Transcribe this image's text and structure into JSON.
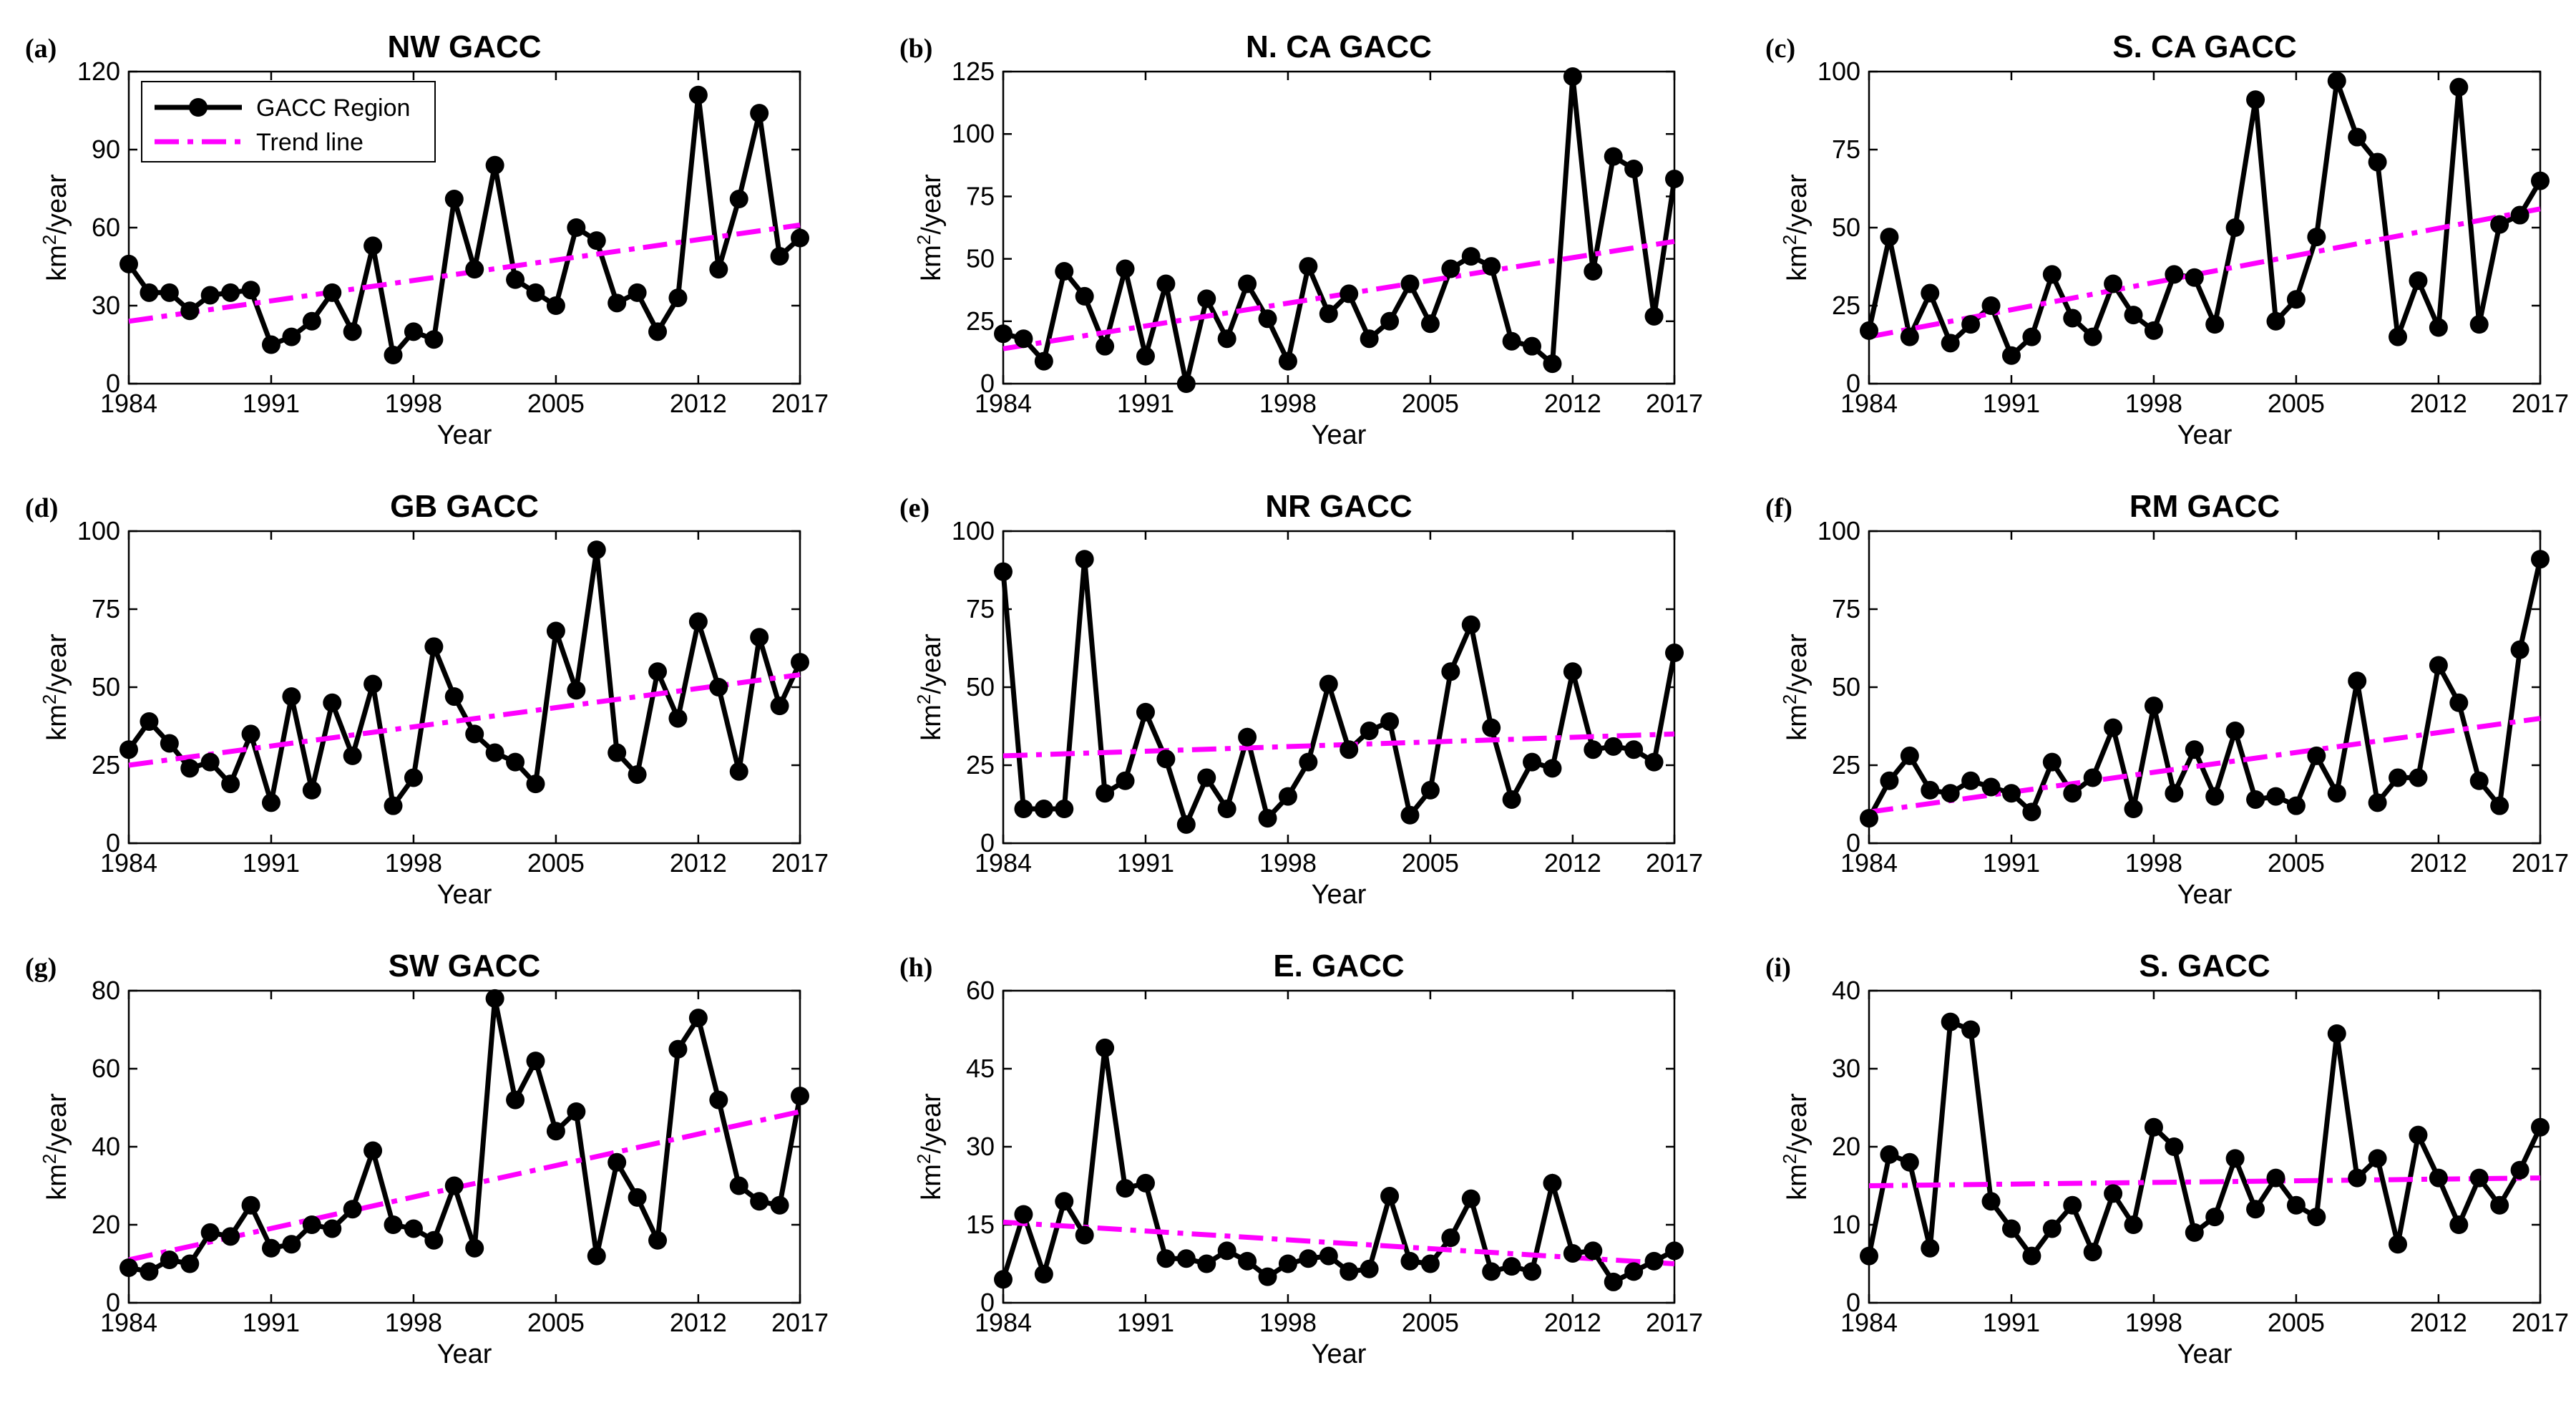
{
  "colors": {
    "series": "#000000",
    "trend": "#ff00ff",
    "axis": "#000000",
    "background": "#ffffff"
  },
  "legend": {
    "placement": "top-left",
    "series_label": "GACC Region",
    "trend_label": "Trend line"
  },
  "chart_data": [
    {
      "panel": "(a)",
      "type": "line",
      "title": "NW GACC",
      "xlabel": "Year",
      "ylabel_base": "km",
      "ylabel_sup": "2",
      "ylabel_tail": "/year",
      "xlim": [
        1984,
        2017
      ],
      "ylim": [
        0,
        120
      ],
      "xticks": [
        1984,
        1991,
        1998,
        2005,
        2012,
        2017
      ],
      "yticks": [
        0,
        30,
        60,
        90,
        120
      ],
      "x": [
        1984,
        1985,
        1986,
        1987,
        1988,
        1989,
        1990,
        1991,
        1992,
        1993,
        1994,
        1995,
        1996,
        1997,
        1998,
        1999,
        2000,
        2001,
        2002,
        2003,
        2004,
        2005,
        2006,
        2007,
        2008,
        2009,
        2010,
        2011,
        2012,
        2013,
        2014,
        2015,
        2016,
        2017
      ],
      "values": [
        46,
        35,
        35,
        28,
        34,
        35,
        36,
        15,
        18,
        24,
        35,
        20,
        53,
        11,
        20,
        17,
        71,
        44,
        84,
        40,
        35,
        30,
        60,
        55,
        31,
        35,
        20,
        33,
        111,
        44,
        71,
        104,
        49,
        56
      ],
      "trend": {
        "start": [
          1984,
          24
        ],
        "end": [
          2017,
          61
        ]
      },
      "legend": true
    },
    {
      "panel": "(b)",
      "type": "line",
      "title": "N. CA GACC",
      "xlabel": "Year",
      "ylabel_base": "km",
      "ylabel_sup": "2",
      "ylabel_tail": "/year",
      "xlim": [
        1984,
        2017
      ],
      "ylim": [
        0,
        125
      ],
      "xticks": [
        1984,
        1991,
        1998,
        2005,
        2012,
        2017
      ],
      "yticks": [
        0,
        25,
        50,
        75,
        100,
        125
      ],
      "x": [
        1984,
        1985,
        1986,
        1987,
        1988,
        1989,
        1990,
        1991,
        1992,
        1993,
        1994,
        1995,
        1996,
        1997,
        1998,
        1999,
        2000,
        2001,
        2002,
        2003,
        2004,
        2005,
        2006,
        2007,
        2008,
        2009,
        2010,
        2011,
        2012,
        2013,
        2014,
        2015,
        2016,
        2017
      ],
      "values": [
        20,
        18,
        9,
        45,
        35,
        15,
        46,
        11,
        40,
        0,
        34,
        18,
        40,
        26,
        9,
        47,
        28,
        36,
        18,
        25,
        40,
        24,
        46,
        51,
        47,
        17,
        15,
        8,
        123,
        45,
        91,
        86,
        27,
        82
      ],
      "trend": {
        "start": [
          1984,
          14
        ],
        "end": [
          2017,
          57
        ]
      },
      "legend": false
    },
    {
      "panel": "(c)",
      "type": "line",
      "title": "S. CA GACC",
      "xlabel": "Year",
      "ylabel_base": "km",
      "ylabel_sup": "2",
      "ylabel_tail": "/year",
      "xlim": [
        1984,
        2017
      ],
      "ylim": [
        0,
        100
      ],
      "xticks": [
        1984,
        1991,
        1998,
        2005,
        2012,
        2017
      ],
      "yticks": [
        0,
        25,
        50,
        75,
        100
      ],
      "x": [
        1984,
        1985,
        1986,
        1987,
        1988,
        1989,
        1990,
        1991,
        1992,
        1993,
        1994,
        1995,
        1996,
        1997,
        1998,
        1999,
        2000,
        2001,
        2002,
        2003,
        2004,
        2005,
        2006,
        2007,
        2008,
        2009,
        2010,
        2011,
        2012,
        2013,
        2014,
        2015,
        2016,
        2017
      ],
      "values": [
        17,
        47,
        15,
        29,
        13,
        19,
        25,
        9,
        15,
        35,
        21,
        15,
        32,
        22,
        17,
        35,
        34,
        19,
        50,
        91,
        20,
        27,
        47,
        97,
        79,
        71,
        15,
        33,
        18,
        95,
        19,
        51,
        54,
        65
      ],
      "trend": {
        "start": [
          1984,
          15
        ],
        "end": [
          2017,
          56
        ]
      },
      "legend": false
    },
    {
      "panel": "(d)",
      "type": "line",
      "title": "GB GACC",
      "xlabel": "Year",
      "ylabel_base": "km",
      "ylabel_sup": "2",
      "ylabel_tail": "/year",
      "xlim": [
        1984,
        2017
      ],
      "ylim": [
        0,
        100
      ],
      "xticks": [
        1984,
        1991,
        1998,
        2005,
        2012,
        2017
      ],
      "yticks": [
        0,
        25,
        50,
        75,
        100
      ],
      "x": [
        1984,
        1985,
        1986,
        1987,
        1988,
        1989,
        1990,
        1991,
        1992,
        1993,
        1994,
        1995,
        1996,
        1997,
        1998,
        1999,
        2000,
        2001,
        2002,
        2003,
        2004,
        2005,
        2006,
        2007,
        2008,
        2009,
        2010,
        2011,
        2012,
        2013,
        2014,
        2015,
        2016,
        2017
      ],
      "values": [
        30,
        39,
        32,
        24,
        26,
        19,
        35,
        13,
        47,
        17,
        45,
        28,
        51,
        12,
        21,
        63,
        47,
        35,
        29,
        26,
        19,
        68,
        49,
        94,
        29,
        22,
        55,
        40,
        71,
        50,
        23,
        66,
        44,
        58
      ],
      "trend": {
        "start": [
          1984,
          25
        ],
        "end": [
          2017,
          54
        ]
      },
      "legend": false
    },
    {
      "panel": "(e)",
      "type": "line",
      "title": "NR GACC",
      "xlabel": "Year",
      "ylabel_base": "km",
      "ylabel_sup": "2",
      "ylabel_tail": "/year",
      "xlim": [
        1984,
        2017
      ],
      "ylim": [
        0,
        100
      ],
      "xticks": [
        1984,
        1991,
        1998,
        2005,
        2012,
        2017
      ],
      "yticks": [
        0,
        25,
        50,
        75,
        100
      ],
      "x": [
        1984,
        1985,
        1986,
        1987,
        1988,
        1989,
        1990,
        1991,
        1992,
        1993,
        1994,
        1995,
        1996,
        1997,
        1998,
        1999,
        2000,
        2001,
        2002,
        2003,
        2004,
        2005,
        2006,
        2007,
        2008,
        2009,
        2010,
        2011,
        2012,
        2013,
        2014,
        2015,
        2016,
        2017
      ],
      "values": [
        87,
        11,
        11,
        11,
        91,
        16,
        20,
        42,
        27,
        6,
        21,
        11,
        34,
        8,
        15,
        26,
        51,
        30,
        36,
        39,
        9,
        17,
        55,
        70,
        37,
        14,
        26,
        24,
        55,
        30,
        31,
        30,
        26,
        61
      ],
      "trend": {
        "start": [
          1984,
          28
        ],
        "end": [
          2017,
          35
        ]
      },
      "legend": false
    },
    {
      "panel": "(f)",
      "type": "line",
      "title": "RM GACC",
      "xlabel": "Year",
      "ylabel_base": "km",
      "ylabel_sup": "2",
      "ylabel_tail": "/year",
      "xlim": [
        1984,
        2017
      ],
      "ylim": [
        0,
        100
      ],
      "xticks": [
        1984,
        1991,
        1998,
        2005,
        2012,
        2017
      ],
      "yticks": [
        0,
        25,
        50,
        75,
        100
      ],
      "x": [
        1984,
        1985,
        1986,
        1987,
        1988,
        1989,
        1990,
        1991,
        1992,
        1993,
        1994,
        1995,
        1996,
        1997,
        1998,
        1999,
        2000,
        2001,
        2002,
        2003,
        2004,
        2005,
        2006,
        2007,
        2008,
        2009,
        2010,
        2011,
        2012,
        2013,
        2014,
        2015,
        2016,
        2017
      ],
      "values": [
        8,
        20,
        28,
        17,
        16,
        20,
        18,
        16,
        10,
        26,
        16,
        21,
        37,
        11,
        44,
        16,
        30,
        15,
        36,
        14,
        15,
        12,
        28,
        16,
        52,
        13,
        21,
        21,
        57,
        45,
        20,
        12,
        62,
        91
      ],
      "trend": {
        "start": [
          1984,
          10
        ],
        "end": [
          2017,
          40
        ]
      },
      "legend": false
    },
    {
      "panel": "(g)",
      "type": "line",
      "title": "SW GACC",
      "xlabel": "Year",
      "ylabel_base": "km",
      "ylabel_sup": "2",
      "ylabel_tail": "/year",
      "xlim": [
        1984,
        2017
      ],
      "ylim": [
        0,
        80
      ],
      "xticks": [
        1984,
        1991,
        1998,
        2005,
        2012,
        2017
      ],
      "yticks": [
        0,
        20,
        40,
        60,
        80
      ],
      "x": [
        1984,
        1985,
        1986,
        1987,
        1988,
        1989,
        1990,
        1991,
        1992,
        1993,
        1994,
        1995,
        1996,
        1997,
        1998,
        1999,
        2000,
        2001,
        2002,
        2003,
        2004,
        2005,
        2006,
        2007,
        2008,
        2009,
        2010,
        2011,
        2012,
        2013,
        2014,
        2015,
        2016,
        2017
      ],
      "values": [
        9,
        8,
        11,
        10,
        18,
        17,
        25,
        14,
        15,
        20,
        19,
        24,
        39,
        20,
        19,
        16,
        30,
        14,
        78,
        52,
        62,
        44,
        49,
        12,
        36,
        27,
        16,
        65,
        73,
        52,
        30,
        26,
        25,
        53
      ],
      "trend": {
        "start": [
          1984,
          11
        ],
        "end": [
          2017,
          49
        ]
      },
      "legend": false
    },
    {
      "panel": "(h)",
      "type": "line",
      "title": "E. GACC",
      "xlabel": "Year",
      "ylabel_base": "km",
      "ylabel_sup": "2",
      "ylabel_tail": "/year",
      "xlim": [
        1984,
        2017
      ],
      "ylim": [
        0,
        60
      ],
      "xticks": [
        1984,
        1991,
        1998,
        2005,
        2012,
        2017
      ],
      "yticks": [
        0,
        15,
        30,
        45,
        60
      ],
      "x": [
        1984,
        1985,
        1986,
        1987,
        1988,
        1989,
        1990,
        1991,
        1992,
        1993,
        1994,
        1995,
        1996,
        1997,
        1998,
        1999,
        2000,
        2001,
        2002,
        2003,
        2004,
        2005,
        2006,
        2007,
        2008,
        2009,
        2010,
        2011,
        2012,
        2013,
        2014,
        2015,
        2016,
        2017
      ],
      "values": [
        4.5,
        17,
        5.5,
        19.5,
        13,
        49,
        22,
        23,
        8.5,
        8.5,
        7.5,
        10,
        8,
        5,
        7.5,
        8.5,
        9,
        6,
        6.5,
        20.5,
        8,
        7.5,
        12.5,
        20,
        6,
        7,
        6,
        23,
        9.5,
        10,
        4,
        6,
        8,
        10
      ],
      "trend": {
        "start": [
          1984,
          15.5
        ],
        "end": [
          2017,
          7.5
        ]
      },
      "legend": false
    },
    {
      "panel": "(i)",
      "type": "line",
      "title": "S. GACC",
      "xlabel": "Year",
      "ylabel_base": "km",
      "ylabel_sup": "2",
      "ylabel_tail": "/year",
      "xlim": [
        1984,
        2017
      ],
      "ylim": [
        0,
        40
      ],
      "xticks": [
        1984,
        1991,
        1998,
        2005,
        2012,
        2017
      ],
      "yticks": [
        0,
        10,
        20,
        30,
        40
      ],
      "x": [
        1984,
        1985,
        1986,
        1987,
        1988,
        1989,
        1990,
        1991,
        1992,
        1993,
        1994,
        1995,
        1996,
        1997,
        1998,
        1999,
        2000,
        2001,
        2002,
        2003,
        2004,
        2005,
        2006,
        2007,
        2008,
        2009,
        2010,
        2011,
        2012,
        2013,
        2014,
        2015,
        2016,
        2017
      ],
      "values": [
        6,
        19,
        18,
        7,
        36,
        35,
        13,
        9.5,
        6,
        9.5,
        12.5,
        6.5,
        14,
        10,
        22.5,
        20,
        9,
        11,
        18.5,
        12,
        16,
        12.5,
        11,
        34.5,
        16,
        18.5,
        7.5,
        21.5,
        16,
        10,
        16,
        12.5,
        17,
        22.5
      ],
      "trend": {
        "start": [
          1984,
          15
        ],
        "end": [
          2017,
          16
        ]
      },
      "legend": false
    }
  ]
}
